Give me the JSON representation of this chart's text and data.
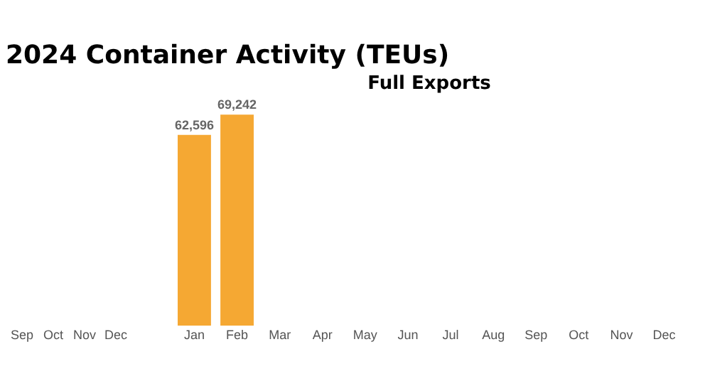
{
  "chart_data": [
    {
      "type": "other",
      "title": "2024 Container Activity (TEUs)",
      "categories": [
        "Sep",
        "Oct",
        "Nov",
        "Dec"
      ]
    },
    {
      "type": "bar",
      "title": "Full Exports",
      "categories": [
        "Jan",
        "Feb",
        "Mar",
        "Apr",
        "May",
        "Jun",
        "Jul",
        "Aug",
        "Sep",
        "Oct",
        "Nov",
        "Dec"
      ],
      "values": [
        62596,
        69242,
        null,
        null,
        null,
        null,
        null,
        null,
        null,
        null,
        null,
        null
      ],
      "value_labels": [
        "62,596",
        "69,242",
        null,
        null,
        null,
        null,
        null,
        null,
        null,
        null,
        null,
        null
      ],
      "color": "#f5a833",
      "grid": false,
      "tick_labels": "x"
    }
  ]
}
